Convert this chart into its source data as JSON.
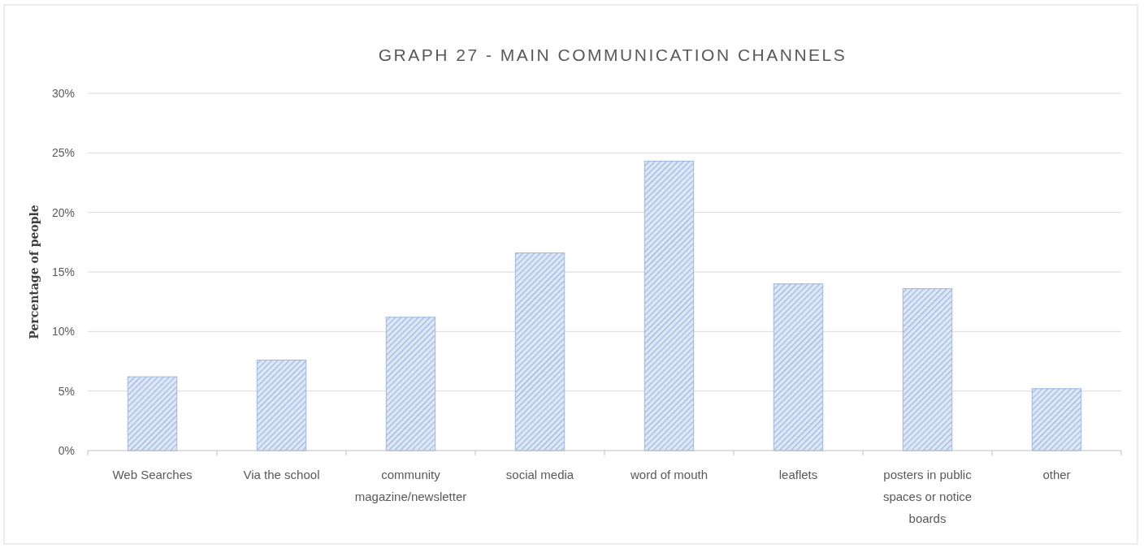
{
  "chart_data": {
    "type": "bar",
    "title": "GRAPH 27 - MAIN COMMUNICATION CHANNELS",
    "ylabel": "Percentage of people",
    "categories": [
      "Web Searches",
      "Via the school",
      "community magazine/newsletter",
      "social media",
      "word of mouth",
      "leaflets",
      "posters in public spaces or notice boards",
      "other"
    ],
    "values": [
      6.2,
      7.6,
      11.2,
      16.6,
      24.3,
      14.0,
      13.6,
      5.2
    ],
    "color": "#9db6e0",
    "ylim": [
      0,
      30
    ],
    "yticks": [
      {
        "value": 0,
        "label": "0%"
      },
      {
        "value": 5,
        "label": "5%"
      },
      {
        "value": 10,
        "label": "10%"
      },
      {
        "value": 15,
        "label": "15%"
      },
      {
        "value": 20,
        "label": "20%"
      },
      {
        "value": 25,
        "label": "25%"
      },
      {
        "value": 30,
        "label": "30%"
      }
    ],
    "grid": "y"
  }
}
